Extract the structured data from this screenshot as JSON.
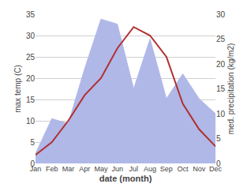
{
  "chart_data": {
    "type": "line",
    "categories": [
      "Jan",
      "Feb",
      "Mar",
      "Apr",
      "May",
      "Jun",
      "Jul",
      "Aug",
      "Sep",
      "Oct",
      "Nov",
      "Dec"
    ],
    "xlabel": "date (month)",
    "ylabel": "max temp (C)",
    "y2label": "med. precipitation (kg/m2)",
    "series": [
      {
        "type": "area",
        "axis": "y2",
        "color": "#b0b8e8",
        "values": [
          2,
          9,
          8,
          19,
          29,
          28,
          15,
          25,
          13,
          18,
          13,
          10
        ]
      },
      {
        "type": "line",
        "color": "#b03030",
        "values": [
          2,
          5,
          10,
          16,
          20,
          27,
          32,
          30,
          25,
          14,
          8,
          4
        ]
      }
    ],
    "ylim": [
      0,
      35
    ],
    "yticks": [
      0,
      5,
      10,
      15,
      20,
      25,
      30,
      35
    ],
    "y2lim": [
      0,
      30
    ],
    "y2ticks": [
      0,
      5,
      10,
      15,
      20,
      25,
      30
    ],
    "grid": true
  }
}
